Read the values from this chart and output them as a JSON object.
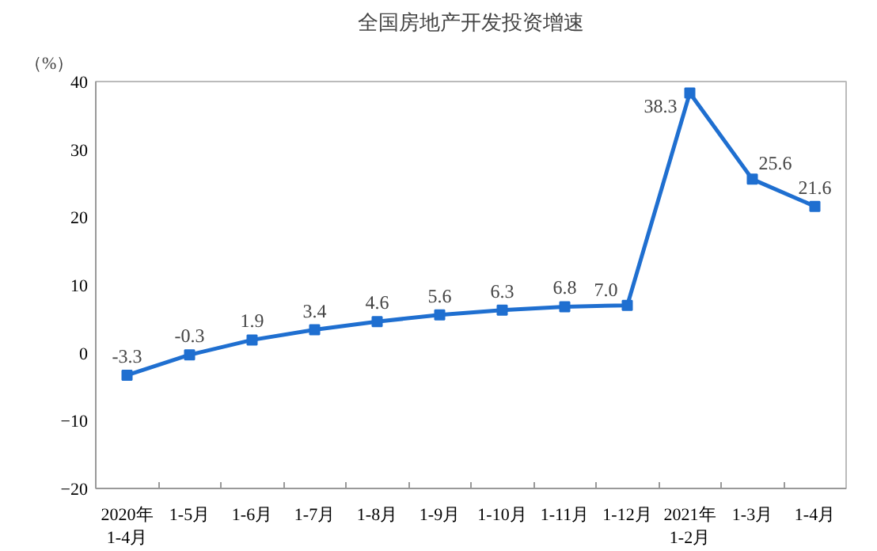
{
  "chart_data": {
    "type": "line",
    "title": "全国房地产开发投资增速",
    "ylabel": "（%）",
    "categories": [
      "2020年\n1-4月",
      "1-5月",
      "1-6月",
      "1-7月",
      "1-8月",
      "1-9月",
      "1-10月",
      "1-11月",
      "1-12月",
      "2021年\n1-2月",
      "1-3月",
      "1-4月"
    ],
    "series": [
      {
        "color": "#1f6fd0",
        "values": [
          -3.3,
          -0.3,
          1.9,
          3.4,
          4.6,
          5.6,
          6.3,
          6.8,
          7.0,
          38.3,
          25.6,
          21.6
        ]
      }
    ],
    "value_labels": [
      "-3.3",
      "-0.3",
      "1.9",
      "3.4",
      "4.6",
      "5.6",
      "6.3",
      "6.8",
      "7.0",
      "38.3",
      "25.6",
      "21.6"
    ],
    "ylim": [
      -20,
      40
    ],
    "yticks": [
      -20,
      -10,
      0,
      10,
      20,
      30,
      40
    ],
    "grid": false,
    "marker": "square",
    "line_style": "solid"
  }
}
